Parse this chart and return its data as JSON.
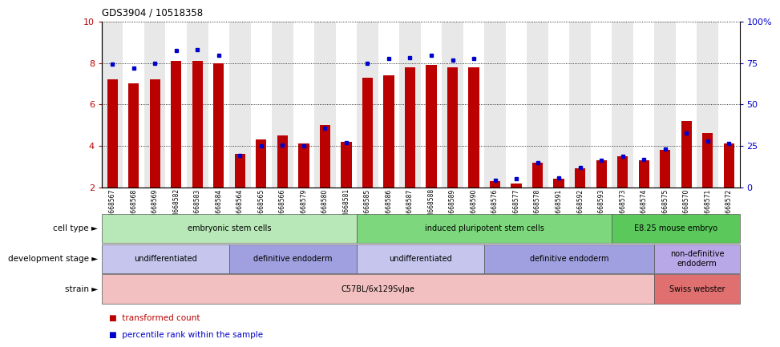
{
  "title": "GDS3904 / 10518358",
  "samples": [
    "GSM668567",
    "GSM668568",
    "GSM668569",
    "GSM668582",
    "GSM668583",
    "GSM668584",
    "GSM668564",
    "GSM668565",
    "GSM668566",
    "GSM668579",
    "GSM668580",
    "GSM668581",
    "GSM668585",
    "GSM668586",
    "GSM668587",
    "GSM668588",
    "GSM668589",
    "GSM668590",
    "GSM668576",
    "GSM668577",
    "GSM668578",
    "GSM668591",
    "GSM668592",
    "GSM668593",
    "GSM668573",
    "GSM668574",
    "GSM668575",
    "GSM668570",
    "GSM668571",
    "GSM668572"
  ],
  "red_values": [
    7.2,
    7.0,
    7.2,
    8.1,
    8.1,
    8.0,
    3.6,
    4.3,
    4.5,
    4.1,
    5.0,
    4.2,
    7.3,
    7.4,
    7.8,
    7.9,
    7.8,
    7.8,
    2.3,
    2.2,
    3.2,
    2.4,
    2.9,
    3.3,
    3.5,
    3.3,
    3.8,
    5.2,
    4.6,
    4.1
  ],
  "blue_values": [
    7.95,
    7.75,
    8.0,
    8.6,
    8.65,
    8.35,
    3.55,
    4.0,
    4.05,
    4.0,
    4.85,
    4.15,
    8.0,
    8.2,
    8.25,
    8.35,
    8.15,
    8.2,
    2.35,
    2.4,
    3.2,
    2.45,
    2.95,
    3.3,
    3.5,
    3.35,
    3.85,
    4.6,
    4.25,
    4.1
  ],
  "ylim": [
    2,
    10
  ],
  "yticks_left": [
    2,
    4,
    6,
    8,
    10
  ],
  "grid_lines": [
    4,
    6,
    8
  ],
  "cell_type_groups": [
    {
      "label": "embryonic stem cells",
      "start": 0,
      "end": 11,
      "color": "#b8e8b8"
    },
    {
      "label": "induced pluripotent stem cells",
      "start": 12,
      "end": 23,
      "color": "#7dd87d"
    },
    {
      "label": "E8.25 mouse embryo",
      "start": 24,
      "end": 29,
      "color": "#5ac85a"
    }
  ],
  "dev_stage_groups": [
    {
      "label": "undifferentiated",
      "start": 0,
      "end": 5,
      "color": "#c5c5ee"
    },
    {
      "label": "definitive endoderm",
      "start": 6,
      "end": 11,
      "color": "#a0a0e0"
    },
    {
      "label": "undifferentiated",
      "start": 12,
      "end": 17,
      "color": "#c5c5ee"
    },
    {
      "label": "definitive endoderm",
      "start": 18,
      "end": 25,
      "color": "#a0a0e0"
    },
    {
      "label": "non-definitive\nendoderm",
      "start": 26,
      "end": 29,
      "color": "#b8a8e8"
    }
  ],
  "strain_groups": [
    {
      "label": "C57BL/6x129SvJae",
      "start": 0,
      "end": 25,
      "color": "#f2c0c0"
    },
    {
      "label": "Swiss webster",
      "start": 26,
      "end": 29,
      "color": "#e07070"
    }
  ],
  "row_labels": [
    "cell type",
    "development stage",
    "strain"
  ],
  "legend_red_label": "transformed count",
  "legend_blue_label": "percentile rank within the sample",
  "red_color": "#bb0000",
  "blue_color": "#0000cc",
  "bg_even": "#e8e8e8",
  "bg_odd": "#ffffff"
}
